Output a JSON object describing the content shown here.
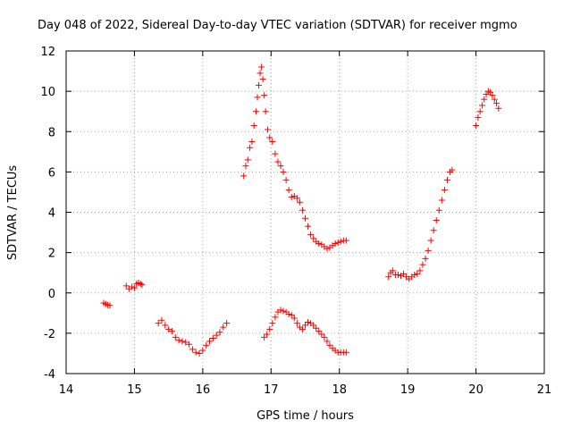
{
  "chart_data": {
    "type": "scatter",
    "title": "Day 048 of 2022, Sidereal Day-to-day VTEC variation (SDTVAR) for receiver mgmo",
    "xlabel": "GPS time / hours",
    "ylabel": "SDTVAR / TECUs",
    "xlim": [
      14,
      21
    ],
    "ylim": [
      -4,
      12
    ],
    "xticks": [
      14,
      15,
      16,
      17,
      18,
      19,
      20,
      21
    ],
    "yticks": [
      -4,
      -2,
      0,
      2,
      4,
      6,
      8,
      10,
      12
    ],
    "grid": true,
    "marker": "plus",
    "color": "#ff0000",
    "segments": [
      {
        "name": "seg1",
        "points": [
          [
            14.55,
            -0.5
          ],
          [
            14.58,
            -0.55
          ],
          [
            14.61,
            -0.6
          ],
          [
            14.64,
            -0.62
          ]
        ]
      },
      {
        "name": "seg2",
        "points": [
          [
            14.88,
            0.35
          ],
          [
            14.92,
            0.2
          ],
          [
            14.96,
            0.3
          ],
          [
            15.0,
            0.25
          ],
          [
            15.03,
            0.45
          ],
          [
            15.06,
            0.5
          ],
          [
            15.09,
            0.45
          ],
          [
            15.11,
            0.4
          ]
        ]
      },
      {
        "name": "seg3",
        "points": [
          [
            15.35,
            -1.5
          ],
          [
            15.4,
            -1.35
          ],
          [
            15.45,
            -1.6
          ],
          [
            15.5,
            -1.8
          ],
          [
            15.55,
            -1.9
          ],
          [
            15.6,
            -2.2
          ],
          [
            15.65,
            -2.35
          ],
          [
            15.7,
            -2.4
          ],
          [
            15.75,
            -2.45
          ],
          [
            15.8,
            -2.55
          ],
          [
            15.85,
            -2.8
          ],
          [
            15.9,
            -2.95
          ],
          [
            15.95,
            -3.0
          ],
          [
            16.0,
            -2.85
          ],
          [
            16.05,
            -2.6
          ],
          [
            16.1,
            -2.4
          ],
          [
            16.15,
            -2.25
          ],
          [
            16.2,
            -2.1
          ],
          [
            16.25,
            -1.95
          ],
          [
            16.3,
            -1.7
          ],
          [
            16.35,
            -1.5
          ]
        ]
      },
      {
        "name": "seg4",
        "points": [
          [
            16.6,
            5.8
          ],
          [
            16.63,
            6.3
          ],
          [
            16.66,
            6.6
          ],
          [
            16.69,
            7.2
          ],
          [
            16.72,
            7.5
          ],
          [
            16.75,
            8.3
          ],
          [
            16.78,
            9.0
          ],
          [
            16.8,
            9.7
          ],
          [
            16.82,
            10.3
          ],
          [
            16.84,
            10.9
          ],
          [
            16.86,
            11.2
          ],
          [
            16.88,
            10.6
          ],
          [
            16.9,
            9.8
          ],
          [
            16.92,
            9.0
          ],
          [
            16.95,
            8.1
          ],
          [
            16.98,
            7.7
          ],
          [
            17.02,
            7.5
          ],
          [
            17.06,
            6.9
          ],
          [
            17.1,
            6.5
          ],
          [
            17.14,
            6.3
          ],
          [
            17.18,
            6.0
          ],
          [
            17.22,
            5.6
          ],
          [
            17.26,
            5.1
          ],
          [
            17.3,
            4.75
          ],
          [
            17.34,
            4.8
          ],
          [
            17.38,
            4.7
          ],
          [
            17.42,
            4.5
          ],
          [
            17.46,
            4.1
          ],
          [
            17.5,
            3.7
          ],
          [
            17.54,
            3.3
          ],
          [
            17.58,
            2.9
          ],
          [
            17.62,
            2.7
          ],
          [
            17.66,
            2.55
          ],
          [
            17.7,
            2.45
          ],
          [
            17.74,
            2.4
          ],
          [
            17.78,
            2.3
          ],
          [
            17.82,
            2.2
          ],
          [
            17.86,
            2.25
          ],
          [
            17.9,
            2.35
          ],
          [
            17.94,
            2.45
          ],
          [
            17.98,
            2.5
          ],
          [
            18.02,
            2.55
          ],
          [
            18.06,
            2.6
          ],
          [
            18.1,
            2.6
          ]
        ]
      },
      {
        "name": "seg5",
        "points": [
          [
            16.9,
            -2.2
          ],
          [
            16.94,
            -2.05
          ],
          [
            16.98,
            -1.8
          ],
          [
            17.02,
            -1.5
          ],
          [
            17.06,
            -1.2
          ],
          [
            17.1,
            -0.95
          ],
          [
            17.14,
            -0.85
          ],
          [
            17.18,
            -0.9
          ],
          [
            17.22,
            -0.95
          ],
          [
            17.26,
            -1.05
          ],
          [
            17.3,
            -1.1
          ],
          [
            17.34,
            -1.25
          ],
          [
            17.38,
            -1.5
          ],
          [
            17.42,
            -1.7
          ],
          [
            17.46,
            -1.8
          ],
          [
            17.5,
            -1.6
          ],
          [
            17.54,
            -1.45
          ],
          [
            17.58,
            -1.5
          ],
          [
            17.62,
            -1.6
          ],
          [
            17.66,
            -1.75
          ],
          [
            17.7,
            -1.9
          ],
          [
            17.74,
            -2.05
          ],
          [
            17.78,
            -2.2
          ],
          [
            17.82,
            -2.4
          ],
          [
            17.86,
            -2.6
          ],
          [
            17.9,
            -2.75
          ],
          [
            17.94,
            -2.85
          ],
          [
            17.98,
            -2.95
          ],
          [
            18.02,
            -2.95
          ],
          [
            18.06,
            -2.95
          ],
          [
            18.1,
            -2.95
          ]
        ]
      },
      {
        "name": "seg6",
        "points": [
          [
            18.72,
            0.8
          ],
          [
            18.75,
            1.0
          ],
          [
            18.78,
            1.1
          ],
          [
            18.82,
            0.9
          ],
          [
            18.86,
            0.9
          ],
          [
            18.9,
            0.85
          ],
          [
            18.94,
            0.95
          ],
          [
            18.98,
            0.8
          ],
          [
            19.02,
            0.7
          ],
          [
            19.06,
            0.8
          ],
          [
            19.1,
            0.9
          ],
          [
            19.14,
            0.95
          ],
          [
            19.18,
            1.1
          ],
          [
            19.22,
            1.4
          ],
          [
            19.26,
            1.7
          ],
          [
            19.3,
            2.1
          ],
          [
            19.34,
            2.6
          ],
          [
            19.38,
            3.1
          ],
          [
            19.42,
            3.6
          ],
          [
            19.46,
            4.1
          ],
          [
            19.5,
            4.6
          ],
          [
            19.54,
            5.1
          ],
          [
            19.58,
            5.6
          ],
          [
            19.62,
            6.0
          ],
          [
            19.65,
            6.1
          ]
        ]
      },
      {
        "name": "seg7",
        "points": [
          [
            20.0,
            8.3
          ],
          [
            20.03,
            8.7
          ],
          [
            20.06,
            9.0
          ],
          [
            20.09,
            9.3
          ],
          [
            20.12,
            9.6
          ],
          [
            20.15,
            9.85
          ],
          [
            20.18,
            10.0
          ],
          [
            20.21,
            9.95
          ],
          [
            20.24,
            9.8
          ],
          [
            20.27,
            9.6
          ],
          [
            20.3,
            9.4
          ],
          [
            20.33,
            9.15
          ]
        ]
      }
    ]
  }
}
